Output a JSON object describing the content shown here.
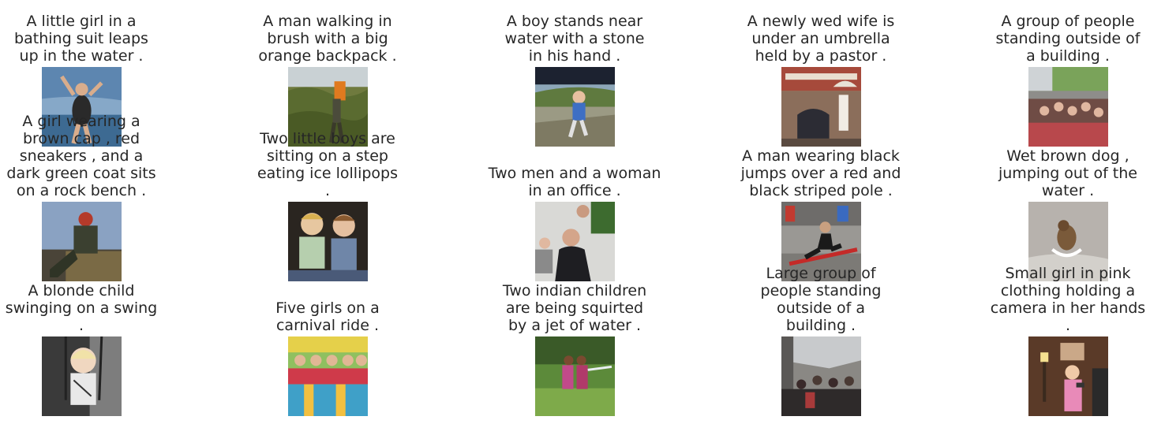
{
  "captions": [
    [
      "A little girl in a\nbathing suit leaps\nup in the water .",
      "A man walking in\nbrush with a big\norange backpack .",
      "A boy stands near\nwater with a stone\nin his hand .",
      "A newly wed wife is\nunder an umbrella\nheld by a pastor .",
      "A group of people\nstanding outside of\na building ."
    ],
    [
      "A girl wearing a\nbrown cap , red\nsneakers , and a\ndark green coat sits\non a rock bench .",
      "Two little boys are\nsitting on a step\neating ice lollipops\n.",
      "Two men and a woman\nin an office .",
      "A man wearing black\njumps over a red and\nblack striped pole .",
      "Wet brown dog ,\njumping out of the\nwater ."
    ],
    [
      "A blonde child\nswinging on a swing\n.",
      "Five girls on a\ncarnival ride .",
      "Two indian children\nare being squirted\nby a jet of water .",
      "Large group of\npeople standing\noutside of a\nbuilding .",
      "Small girl in pink\nclothing holding a\ncamera in her hands\n."
    ]
  ]
}
